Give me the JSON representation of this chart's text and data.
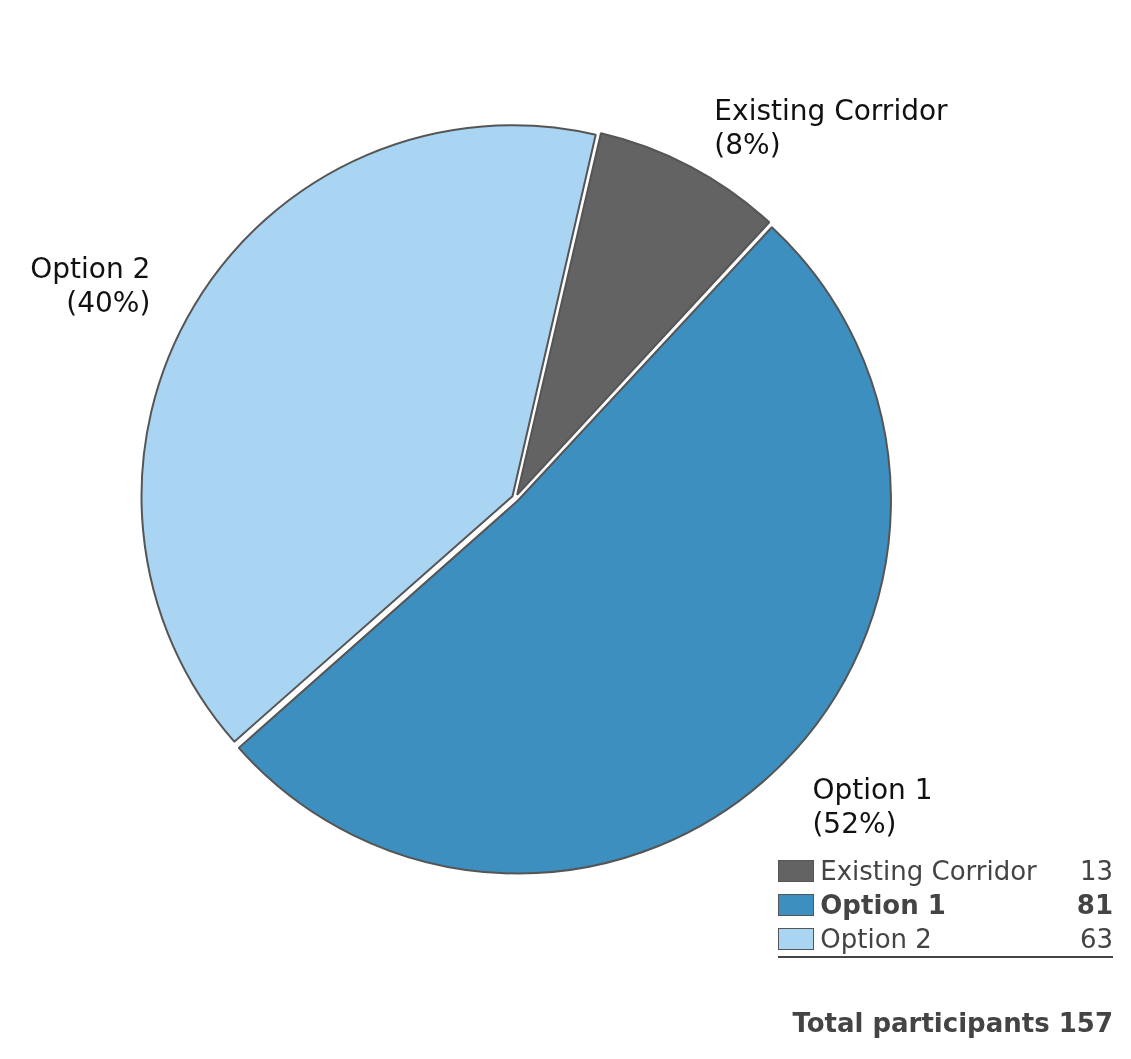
{
  "chart_data": {
    "type": "pie",
    "categories": [
      "Existing Corridor",
      "Option 1",
      "Option 2"
    ],
    "values": [
      13,
      81,
      63
    ],
    "colors": [
      "#636363",
      "#3d8fc0",
      "#a9d5f2"
    ],
    "value_labels": [
      "13",
      "81",
      "63"
    ],
    "legend": "bottom right",
    "annotations": [
      {
        "text": "(8%)",
        "x": "Existing Corridor"
      },
      {
        "text": "(52%)",
        "x": "Option 1"
      },
      {
        "text": "(40%)",
        "x": "Option 2"
      },
      "Total participants 157"
    ]
  }
}
